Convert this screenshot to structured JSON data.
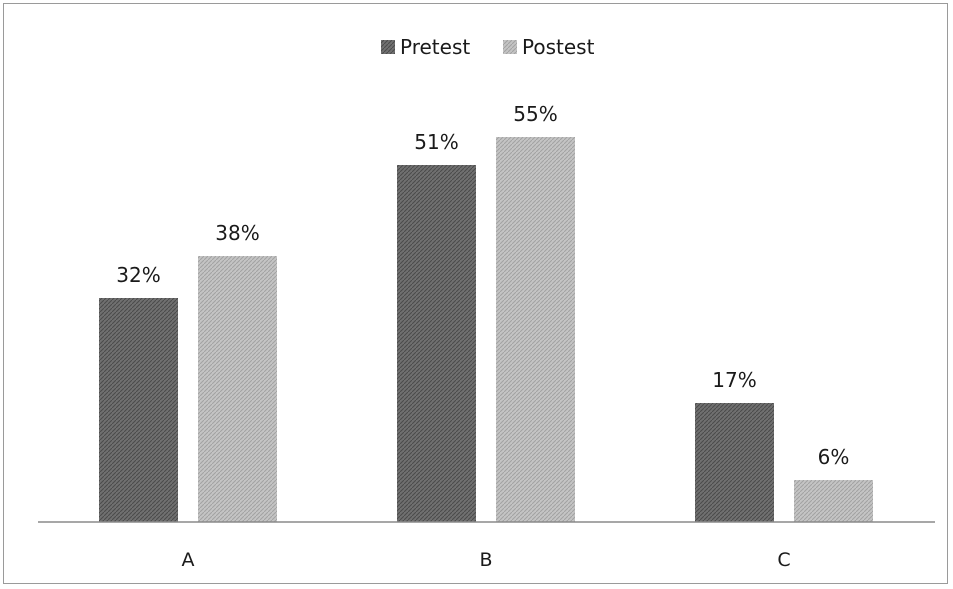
{
  "chart_data": {
    "type": "bar",
    "title": "",
    "xlabel": "",
    "ylabel": "",
    "categories": [
      "A",
      "B",
      "C"
    ],
    "series": [
      {
        "name": "Pretest",
        "values": [
          32,
          51,
          17
        ],
        "labels": [
          "32%",
          "51%",
          "17%"
        ],
        "color": "#6f6f6f"
      },
      {
        "name": "Postest",
        "values": [
          38,
          55,
          6
        ],
        "labels": [
          "38%",
          "55%",
          "6%"
        ],
        "color": "#bdbdbd"
      }
    ],
    "value_suffix": "%",
    "ylim": [
      0,
      60
    ],
    "grid": false,
    "y_axis_visible": false,
    "legend_position": "top"
  }
}
